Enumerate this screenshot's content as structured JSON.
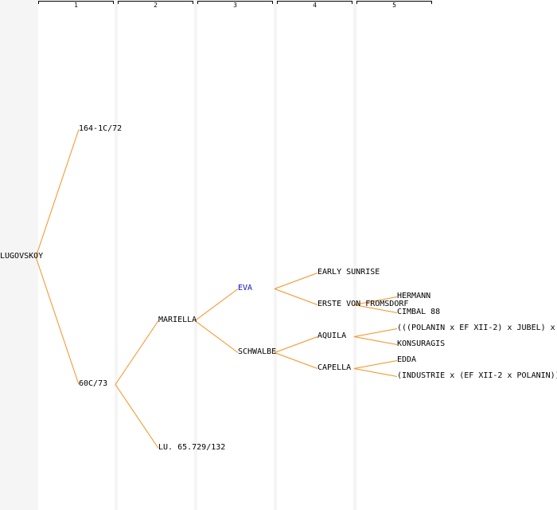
{
  "generations": [
    "1",
    "2",
    "3",
    "4",
    "5"
  ],
  "colors": {
    "link": "#f7901e",
    "highlight": "#1010d0",
    "text": "#000000",
    "column": "#ffffff",
    "gutter": "#f5f5f5"
  },
  "nodes": [
    {
      "id": "lugovskoy",
      "label": "LUGOVSKOY",
      "gen": 0
    },
    {
      "id": "n164",
      "label": "164-1C/72",
      "gen": 1
    },
    {
      "id": "n60c",
      "label": "60C/73",
      "gen": 1
    },
    {
      "id": "mariella",
      "label": "MARIELLA",
      "gen": 2
    },
    {
      "id": "lu65",
      "label": "LU. 65.729/132",
      "gen": 2
    },
    {
      "id": "eva",
      "label": "EVA",
      "gen": 3,
      "highlight": true
    },
    {
      "id": "schwalbe",
      "label": "SCHWALBE",
      "gen": 3
    },
    {
      "id": "early",
      "label": "EARLY SUNRISE",
      "gen": 4
    },
    {
      "id": "erste",
      "label": "ERSTE VON FROMSDORF",
      "gen": 4
    },
    {
      "id": "aquila",
      "label": "AQUILA",
      "gen": 4
    },
    {
      "id": "capella",
      "label": "CAPELLA",
      "gen": 4
    },
    {
      "id": "hermann",
      "label": "HERMANN",
      "gen": 5
    },
    {
      "id": "cimbal",
      "label": "CIMBAL 88",
      "gen": 5
    },
    {
      "id": "polanin",
      "label": "(((POLANIN x EF XII-2) x JUBEL) x",
      "gen": 5
    },
    {
      "id": "konsuragis",
      "label": "KONSURAGIS",
      "gen": 5
    },
    {
      "id": "edda",
      "label": "EDDA",
      "gen": 5
    },
    {
      "id": "industrie",
      "label": "(INDUSTRIE x (EF XII-2 x POLANIN))",
      "gen": 5
    }
  ],
  "links": [
    [
      "lugovskoy",
      "n164"
    ],
    [
      "lugovskoy",
      "n60c"
    ],
    [
      "n60c",
      "mariella"
    ],
    [
      "n60c",
      "lu65"
    ],
    [
      "mariella",
      "eva"
    ],
    [
      "mariella",
      "schwalbe"
    ],
    [
      "eva",
      "early"
    ],
    [
      "eva",
      "erste"
    ],
    [
      "schwalbe",
      "aquila"
    ],
    [
      "schwalbe",
      "capella"
    ],
    [
      "erste",
      "hermann"
    ],
    [
      "erste",
      "cimbal"
    ],
    [
      "aquila",
      "polanin"
    ],
    [
      "aquila",
      "konsuragis"
    ],
    [
      "capella",
      "edda"
    ],
    [
      "capella",
      "industrie"
    ]
  ]
}
